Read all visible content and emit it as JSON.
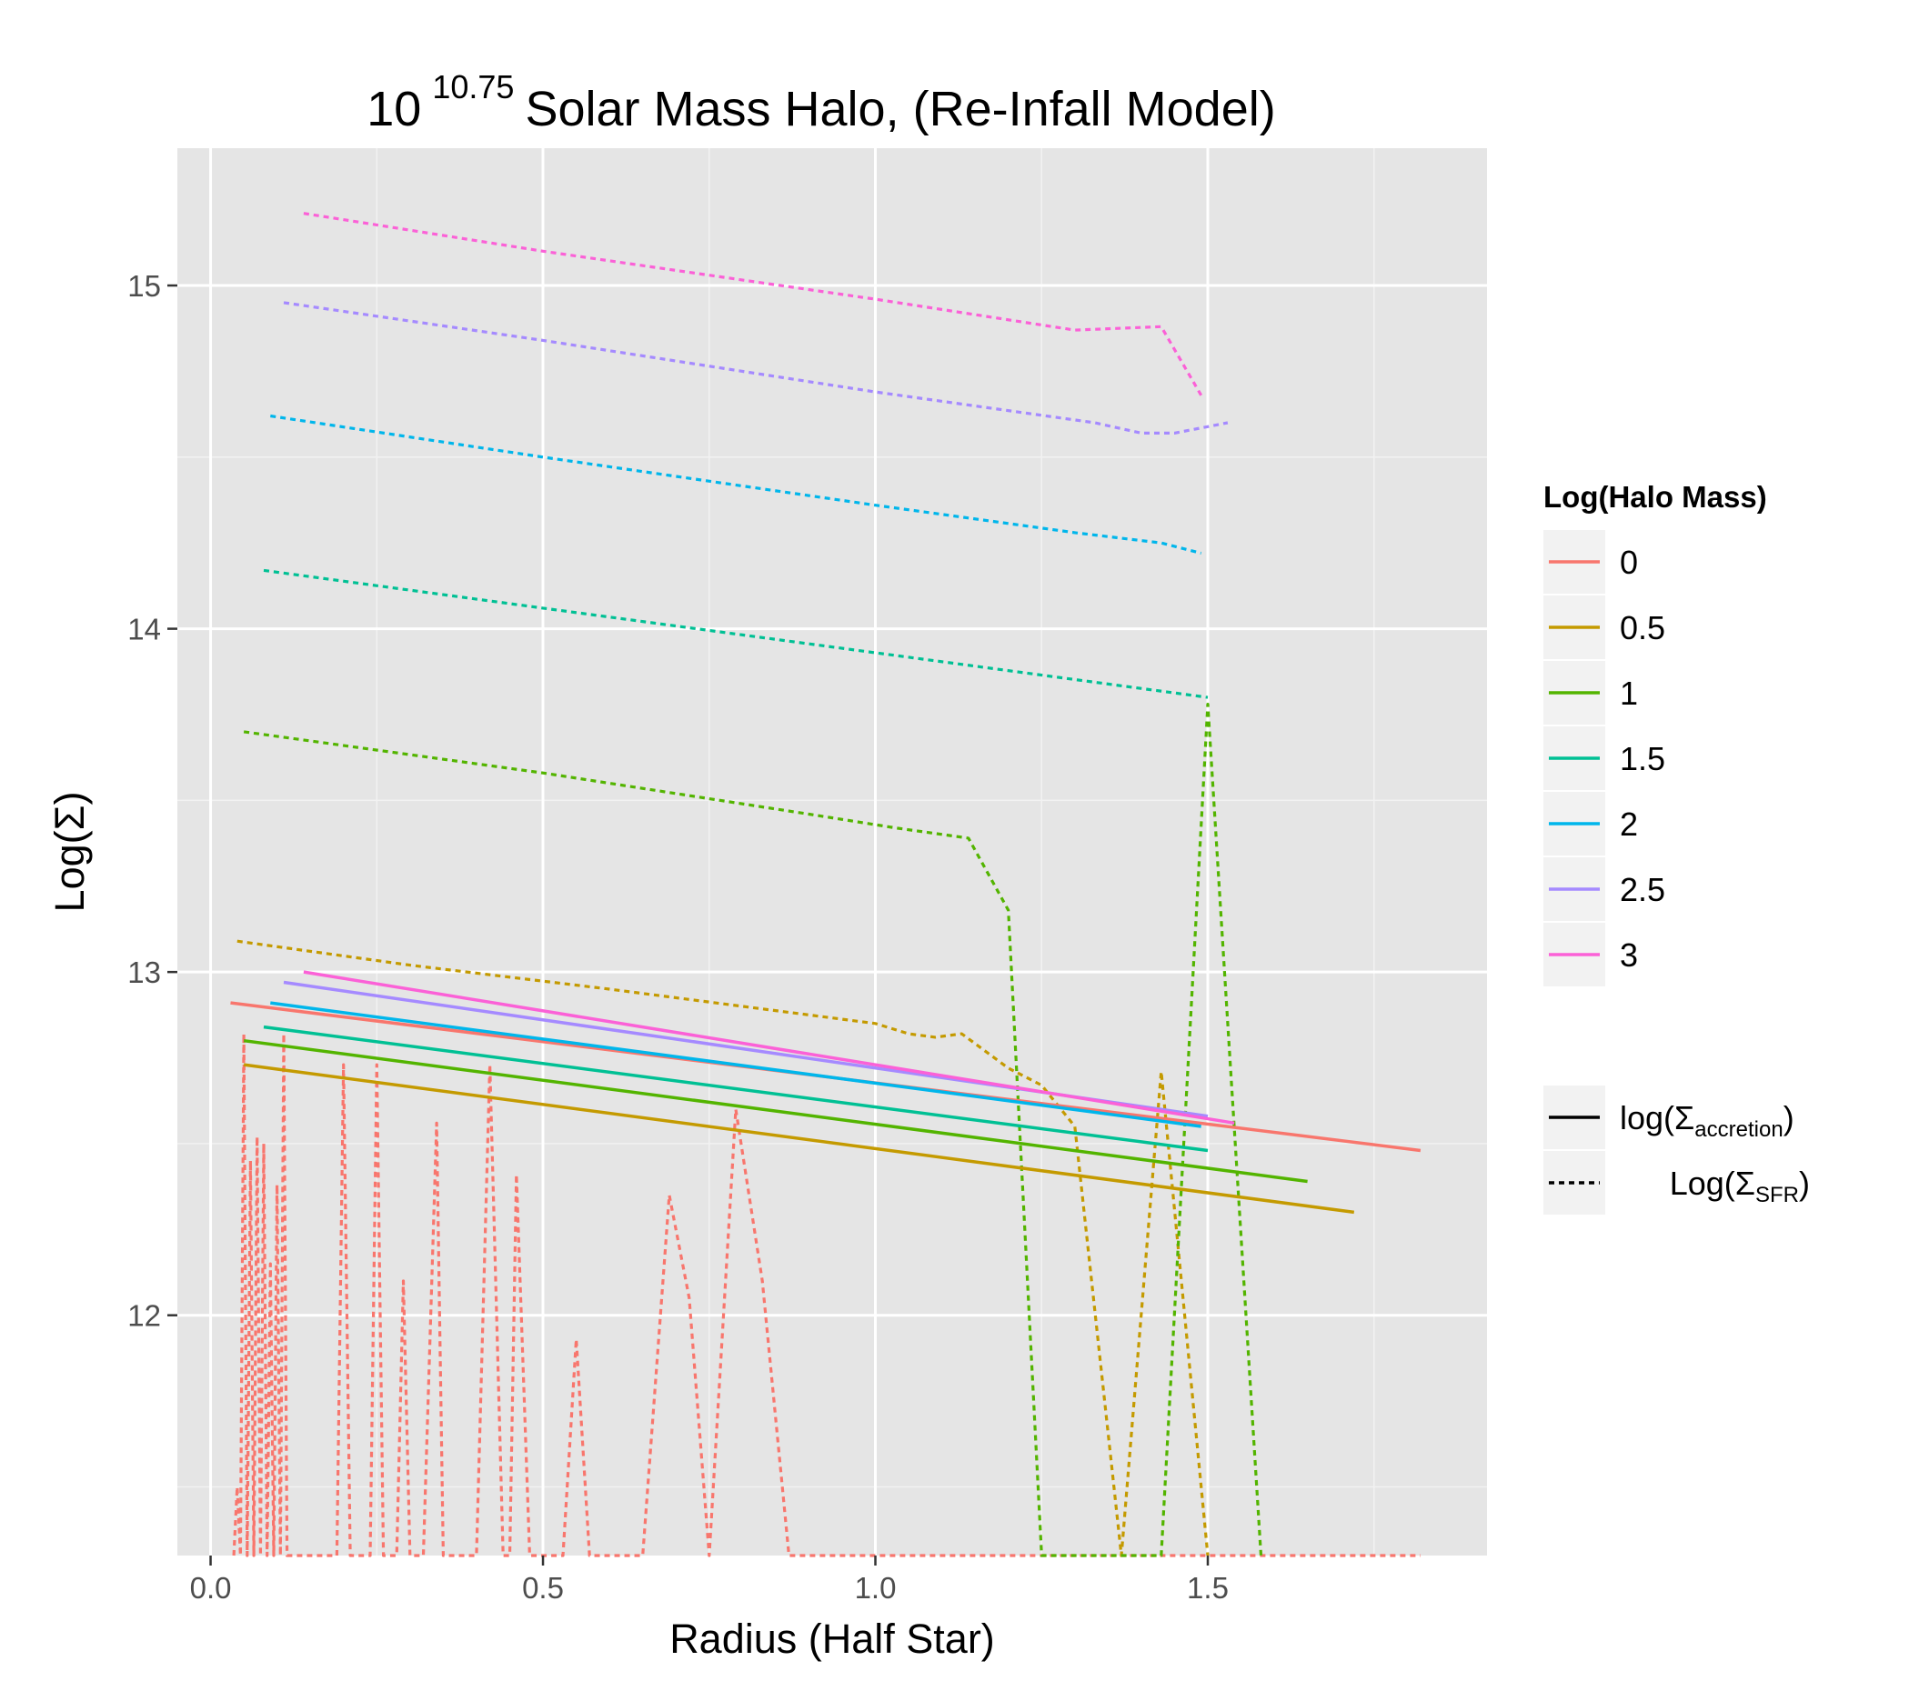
{
  "chart_data": {
    "type": "line",
    "title": {
      "base": "10",
      "exponent": "10.75",
      "rest": "Solar Mass Halo, (Re-Infall Model)"
    },
    "xlabel": "Radius (Half Star)",
    "ylabel": "Log(Σ)",
    "xlim": [
      -0.05,
      1.92
    ],
    "ylim": [
      11.3,
      15.4
    ],
    "x_ticks": [
      0.0,
      0.5,
      1.0,
      1.5
    ],
    "x_tick_labels": [
      "0.0",
      "0.5",
      "1.0",
      "1.5"
    ],
    "y_ticks": [
      12,
      13,
      14,
      15
    ],
    "y_tick_labels": [
      "12",
      "13",
      "14",
      "15"
    ],
    "grid": true,
    "panel_background": "#e5e5e5",
    "legend_position": "right",
    "legend_color_title": "Log(Halo Mass)",
    "legend_linetype": [
      {
        "style": "solid",
        "label_main": "log(Σ",
        "label_sub": "accretion",
        "label_close": ")"
      },
      {
        "style": "dashed",
        "label_main": "Log(Σ",
        "label_sub": "SFR",
        "label_close": ")"
      }
    ],
    "series": [
      {
        "name": "0",
        "color": "#F8766D",
        "accretion": {
          "x": [
            0.03,
            1.82
          ],
          "y": [
            12.91,
            12.48
          ]
        },
        "sfr": {
          "x": [
            0.035,
            0.04,
            0.045,
            0.05,
            0.055,
            0.06,
            0.065,
            0.07,
            0.075,
            0.08,
            0.085,
            0.09,
            0.095,
            0.1,
            0.105,
            0.11,
            0.115,
            0.12,
            0.19,
            0.2,
            0.21,
            0.24,
            0.25,
            0.26,
            0.28,
            0.29,
            0.3,
            0.32,
            0.34,
            0.35,
            0.36,
            0.4,
            0.42,
            0.44,
            0.45,
            0.46,
            0.48,
            0.53,
            0.55,
            0.57,
            0.65,
            0.69,
            0.72,
            0.75,
            0.79,
            0.83,
            0.87,
            1.82
          ],
          "y": [
            11.3,
            11.5,
            11.3,
            12.82,
            11.3,
            12.45,
            11.3,
            12.52,
            11.3,
            12.5,
            11.3,
            12.15,
            11.3,
            12.38,
            11.3,
            12.82,
            11.3,
            11.3,
            11.3,
            12.73,
            11.3,
            11.3,
            12.73,
            11.3,
            11.3,
            12.1,
            11.3,
            11.3,
            12.56,
            11.3,
            11.3,
            11.3,
            12.73,
            11.3,
            11.3,
            12.41,
            11.3,
            11.3,
            11.93,
            11.3,
            11.3,
            12.35,
            12.05,
            11.3,
            12.6,
            12.1,
            11.3,
            11.3
          ]
        }
      },
      {
        "name": "0.5",
        "color": "#C49A00",
        "accretion": {
          "x": [
            0.05,
            1.72
          ],
          "y": [
            12.73,
            12.3
          ]
        },
        "sfr": {
          "x": [
            0.04,
            0.3,
            0.6,
            0.8,
            1.0,
            1.05,
            1.09,
            1.13,
            1.2,
            1.25,
            1.3,
            1.37,
            1.43,
            1.5
          ],
          "y": [
            13.09,
            13.02,
            12.95,
            12.9,
            12.85,
            12.82,
            12.81,
            12.82,
            12.72,
            12.67,
            12.55,
            11.3,
            12.71,
            11.3
          ]
        }
      },
      {
        "name": "1",
        "color": "#53B400",
        "accretion": {
          "x": [
            0.05,
            1.65
          ],
          "y": [
            12.8,
            12.39
          ]
        },
        "sfr": {
          "x": [
            0.05,
            0.5,
            0.9,
            1.03,
            1.14,
            1.2,
            1.25,
            1.43,
            1.5,
            1.58
          ],
          "y": [
            13.7,
            13.58,
            13.46,
            13.42,
            13.39,
            13.18,
            11.3,
            11.3,
            13.78,
            11.3
          ]
        }
      },
      {
        "name": "1.5",
        "color": "#00C094",
        "accretion": {
          "x": [
            0.08,
            1.5
          ],
          "y": [
            12.84,
            12.48
          ]
        },
        "sfr": {
          "x": [
            0.08,
            0.5,
            1.0,
            1.5
          ],
          "y": [
            14.17,
            14.06,
            13.93,
            13.8
          ]
        }
      },
      {
        "name": "2",
        "color": "#00B6EB",
        "accretion": {
          "x": [
            0.09,
            1.49
          ],
          "y": [
            12.91,
            12.55
          ]
        },
        "sfr": {
          "x": [
            0.09,
            0.5,
            1.0,
            1.3,
            1.43,
            1.49
          ],
          "y": [
            14.62,
            14.5,
            14.36,
            14.28,
            14.25,
            14.22
          ]
        }
      },
      {
        "name": "2.5",
        "color": "#A58AFF",
        "accretion": {
          "x": [
            0.11,
            1.5
          ],
          "y": [
            12.97,
            12.58
          ]
        },
        "sfr": {
          "x": [
            0.11,
            0.5,
            1.0,
            1.33,
            1.4,
            1.45,
            1.53
          ],
          "y": [
            14.95,
            14.84,
            14.69,
            14.6,
            14.57,
            14.57,
            14.6
          ]
        }
      },
      {
        "name": "3",
        "color": "#FB61D7",
        "accretion": {
          "x": [
            0.14,
            1.54
          ],
          "y": [
            13.0,
            12.56
          ]
        },
        "sfr": {
          "x": [
            0.14,
            0.5,
            1.0,
            1.3,
            1.43,
            1.49
          ],
          "y": [
            15.21,
            15.1,
            14.96,
            14.87,
            14.88,
            14.68
          ]
        }
      }
    ]
  }
}
